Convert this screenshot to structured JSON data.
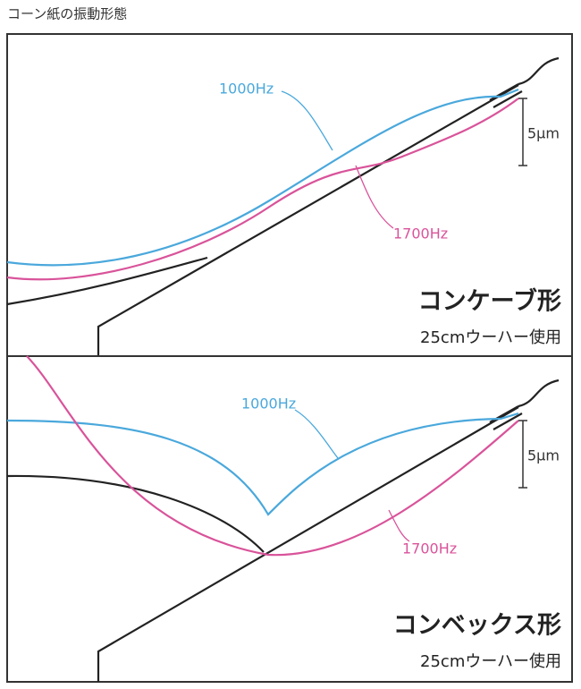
{
  "title": "コーン紙の振動形態",
  "panels": [
    {
      "curve_labels": [
        "1000Hz",
        "1700Hz"
      ],
      "scale_label": "5μm",
      "shape_label": "コンケーブ形",
      "note": "25cmウーハー使用"
    },
    {
      "curve_labels": [
        "1000Hz",
        "1700Hz"
      ],
      "scale_label": "5μm",
      "shape_label": "コンベックス形",
      "note": "25cmウーハー使用"
    }
  ]
}
